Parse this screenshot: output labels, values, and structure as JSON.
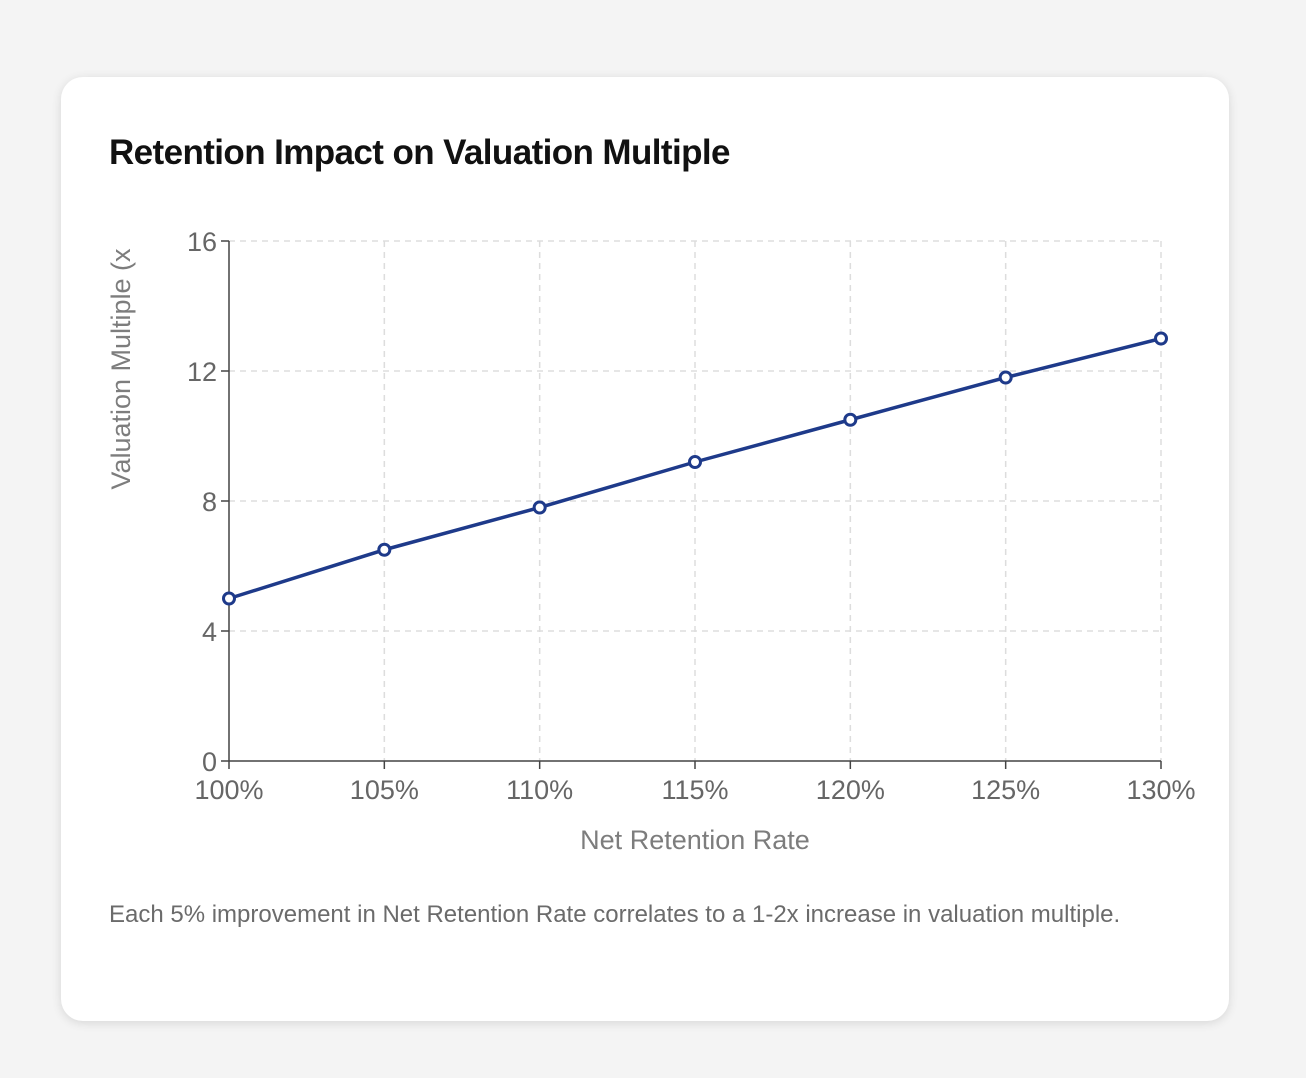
{
  "card": {
    "title": "Retention Impact on Valuation Multiple",
    "caption": "Each 5% improvement in Net Retention Rate correlates to a 1-2x increase in valuation multiple."
  },
  "chart_data": {
    "type": "line",
    "title": "Retention Impact on Valuation Multiple",
    "xlabel": "Net Retention Rate",
    "ylabel": "Valuation Multiple (x",
    "categories": [
      "100%",
      "105%",
      "110%",
      "115%",
      "120%",
      "125%",
      "130%"
    ],
    "series": [
      {
        "values": [
          5.0,
          6.5,
          7.8,
          9.2,
          10.5,
          11.8,
          13.0
        ],
        "color": "#1e3a8a"
      }
    ],
    "ylim": [
      0,
      16
    ],
    "yticks": [
      "0",
      "4",
      "8",
      "12",
      "16"
    ],
    "grid": true,
    "legend": "none"
  }
}
